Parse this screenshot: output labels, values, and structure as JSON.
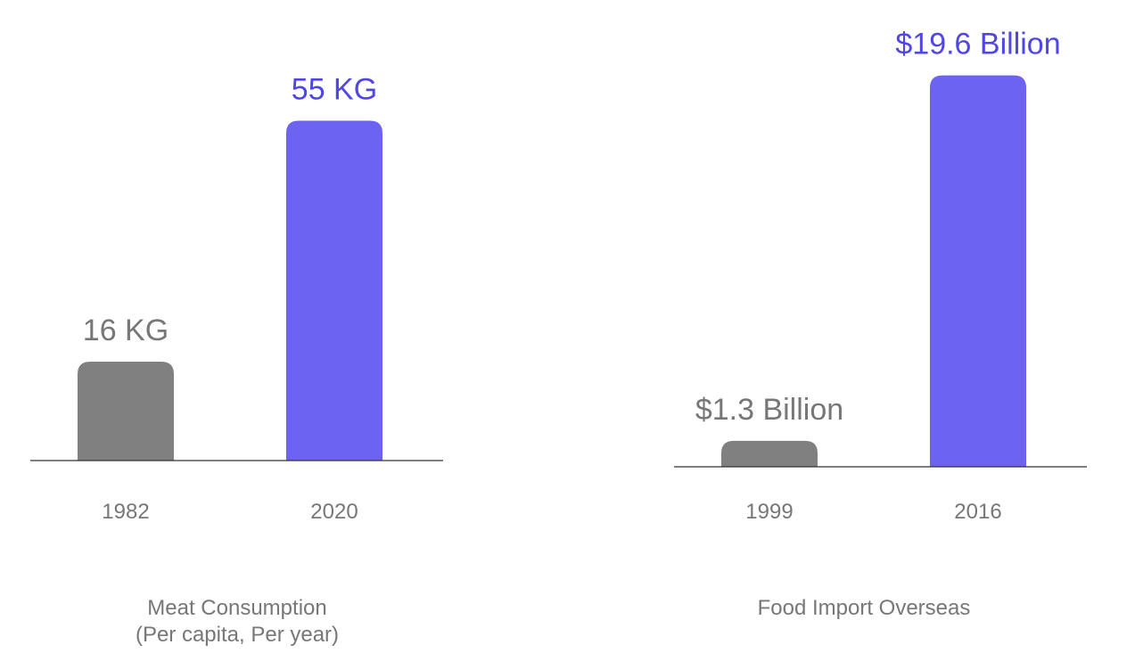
{
  "chart_data": [
    {
      "type": "bar",
      "title": "Meat Consumption",
      "subtitle": "(Per capita, Per year)",
      "categories": [
        "1982",
        "2020"
      ],
      "values": [
        16,
        55
      ],
      "data_labels": [
        "16 KG",
        "55 KG"
      ],
      "colors": [
        "#808080",
        "#6c63f2"
      ],
      "label_colors": [
        "#777777",
        "#4f46e5"
      ],
      "ylim": [
        0,
        62
      ]
    },
    {
      "type": "bar",
      "title": "Food Import Overseas",
      "subtitle": "",
      "categories": [
        "1999",
        "2016"
      ],
      "values": [
        1.3,
        19.6
      ],
      "data_labels": [
        "$1.3 Billion",
        "$19.6 Billion"
      ],
      "colors": [
        "#808080",
        "#6c63f2"
      ],
      "label_colors": [
        "#777777",
        "#4f46e5"
      ],
      "ylim": [
        0,
        21.5
      ]
    }
  ]
}
